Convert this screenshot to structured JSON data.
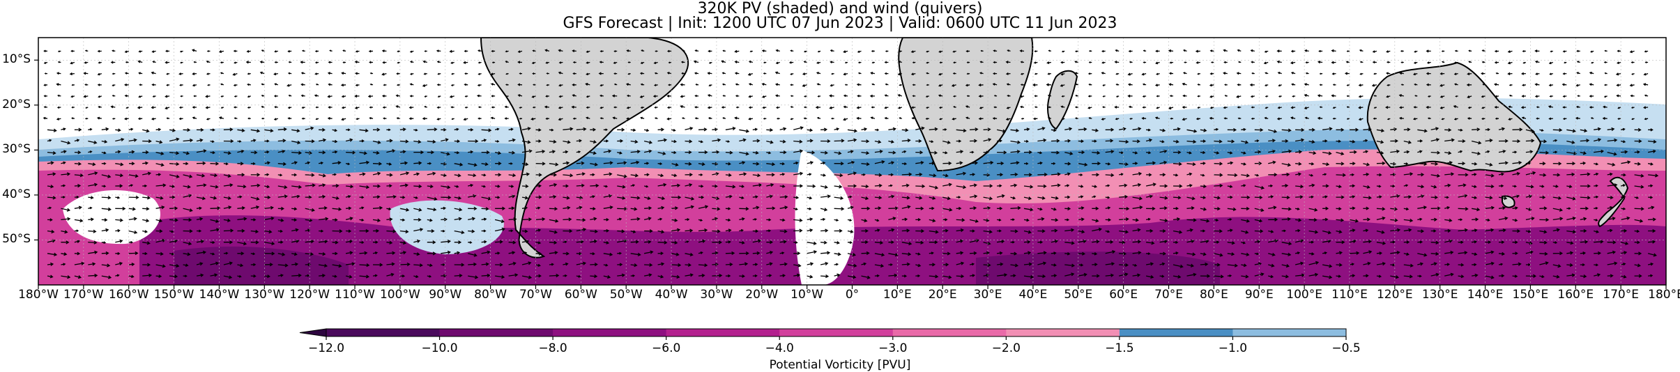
{
  "title": "320K PV (shaded) and wind (quivers)",
  "subtitle": "GFS Forecast | Init: 1200 UTC 07 Jun 2023 | Valid: 0600 UTC 11 Jun 2023",
  "lat_ticks": [
    "10°S",
    "20°S",
    "30°S",
    "40°S",
    "50°S"
  ],
  "lat_values": [
    -10,
    -20,
    -30,
    -40,
    -50
  ],
  "lat_range": [
    -5,
    -60
  ],
  "lon_range": [
    -180,
    180
  ],
  "lon_ticks": [
    "180°W",
    "170°W",
    "160°W",
    "150°W",
    "140°W",
    "130°W",
    "120°W",
    "110°W",
    "100°W",
    "90°W",
    "80°W",
    "70°W",
    "60°W",
    "50°W",
    "40°W",
    "30°W",
    "20°W",
    "10°W",
    "0°",
    "10°E",
    "20°E",
    "30°E",
    "40°E",
    "50°E",
    "60°E",
    "70°E",
    "80°E",
    "90°E",
    "100°E",
    "110°E",
    "120°E",
    "130°E",
    "140°E",
    "150°E",
    "160°E",
    "170°E",
    "180°E"
  ],
  "colorbar": {
    "label": "Potential Vorticity [PVU]",
    "extend": "min",
    "tick_labels": [
      "−12.0",
      "−10.0",
      "−8.0",
      "−6.0",
      "−4.0",
      "−3.0",
      "−2.0",
      "−1.5",
      "−1.0",
      "−0.5"
    ],
    "levels": [
      -12.0,
      -10.0,
      -8.0,
      -6.0,
      -4.0,
      -3.0,
      -2.0,
      -1.5,
      -1.0,
      -0.5
    ],
    "colors": [
      "#4a0a5c",
      "#6e0a6e",
      "#8e1080",
      "#b3208e",
      "#d23f9c",
      "#e96aa8",
      "#f28fb4",
      "#4a8fc4",
      "#8dbde0",
      "#c6dff1"
    ],
    "extend_color": "#2e0640"
  },
  "colors": {
    "land": "#d3d3d3",
    "coastline": "#000000",
    "quiver": "#000000"
  }
}
